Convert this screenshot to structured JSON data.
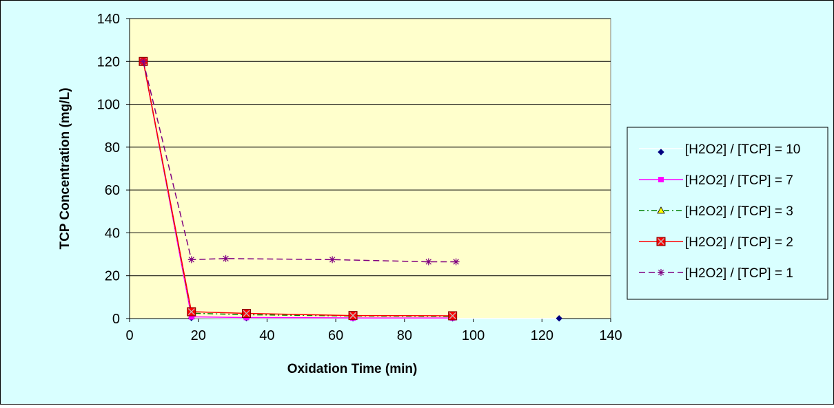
{
  "colors": {
    "chart_background": "#d9ffff",
    "plot_background": "#ffffcc",
    "gridline": "#000000",
    "border": "#000000"
  },
  "chart_data": {
    "type": "line",
    "title": "",
    "xlabel": "Oxidation Time (min)",
    "ylabel": "TCP Concentration  (mg/L)",
    "xlim": [
      0,
      140
    ],
    "ylim": [
      0,
      140
    ],
    "x_ticks": [
      0,
      20,
      40,
      60,
      80,
      100,
      120,
      140
    ],
    "y_ticks": [
      0,
      20,
      40,
      60,
      80,
      100,
      120,
      140
    ],
    "grid": "horizontal",
    "legend_position": "right",
    "series": [
      {
        "name": "[H2O2] / [TCP] = 10",
        "color": "#ffffff",
        "marker_color": "#000080",
        "marker": "diamond",
        "line_style": "solid",
        "points": [
          [
            4,
            120
          ],
          [
            18,
            0.3
          ],
          [
            34,
            0.2
          ],
          [
            65,
            0.1
          ],
          [
            94,
            0.1
          ],
          [
            125,
            0.1
          ]
        ]
      },
      {
        "name": "[H2O2] / [TCP] = 7",
        "color": "#ff00ff",
        "marker_color": "#ff00ff",
        "marker": "square",
        "line_style": "solid",
        "points": [
          [
            4,
            120
          ],
          [
            18,
            0.8
          ],
          [
            34,
            0.5
          ],
          [
            65,
            0.3
          ],
          [
            94,
            0.3
          ]
        ]
      },
      {
        "name": "[H2O2] / [TCP] = 3",
        "color": "#008000",
        "marker_color": "#ffff00",
        "marker": "triangle",
        "line_style": "dashdot",
        "points": [
          [
            4,
            120
          ],
          [
            18,
            2.5
          ],
          [
            34,
            1.8
          ],
          [
            65,
            1.2
          ],
          [
            94,
            1.0
          ]
        ]
      },
      {
        "name": "[H2O2] / [TCP] = 2",
        "color": "#ff0000",
        "marker_color": "#ff0000",
        "marker": "square-x",
        "line_style": "solid",
        "points": [
          [
            4,
            120
          ],
          [
            18,
            3.2
          ],
          [
            34,
            2.4
          ],
          [
            65,
            1.4
          ],
          [
            94,
            1.3
          ]
        ]
      },
      {
        "name": "[H2O2] / [TCP] = 1",
        "color": "#800080",
        "marker_color": "#800080",
        "marker": "star",
        "line_style": "dashed",
        "points": [
          [
            4,
            120
          ],
          [
            18,
            27.5
          ],
          [
            28,
            28
          ],
          [
            59,
            27.5
          ],
          [
            87,
            26.5
          ],
          [
            95,
            26.5
          ]
        ]
      }
    ]
  }
}
